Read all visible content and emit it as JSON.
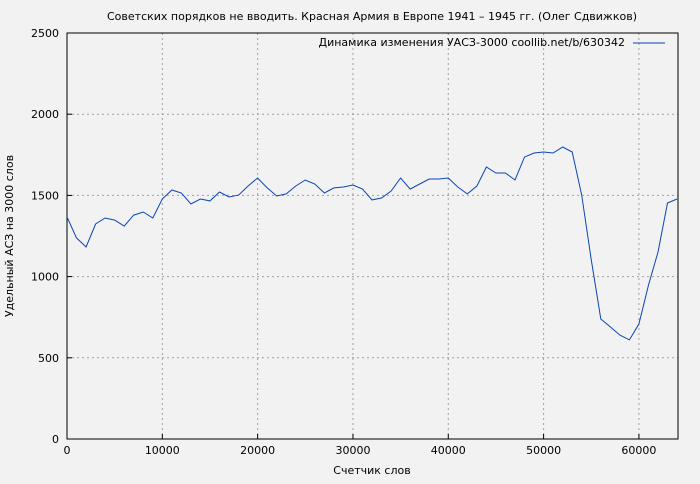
{
  "chart_data": {
    "type": "line",
    "title": "Советских порядков не вводить. Красная Армия в Европе 1941 – 1945 гг. (Олег Сдвижков)",
    "xlabel": "Счетчик слов",
    "ylabel": "Удельный АСЗ на 3000 слов",
    "xlim": [
      0,
      64100
    ],
    "ylim": [
      0,
      2500
    ],
    "xticks": [
      0,
      10000,
      20000,
      30000,
      40000,
      50000,
      60000
    ],
    "yticks": [
      0,
      500,
      1000,
      1500,
      2000,
      2500
    ],
    "grid": true,
    "legend_position": "top-right",
    "series": [
      {
        "name": "Динамика изменения УАСЗ-3000 coollib.net/b/630342",
        "color": "#0a46b4",
        "x": [
          0,
          1000,
          2000,
          3000,
          4000,
          5000,
          6000,
          7000,
          8000,
          9000,
          10000,
          11000,
          12000,
          13000,
          14000,
          15000,
          16000,
          17000,
          18000,
          19000,
          20000,
          21000,
          22000,
          23000,
          24000,
          25000,
          26000,
          27000,
          28000,
          29000,
          30000,
          31000,
          32000,
          33000,
          34000,
          35000,
          36000,
          37000,
          38000,
          39000,
          40000,
          41000,
          42000,
          43000,
          44000,
          45000,
          46000,
          47000,
          48000,
          49000,
          50000,
          51000,
          52000,
          53000,
          54000,
          55000,
          56000,
          57000,
          58000,
          59000,
          60000,
          61000,
          62000,
          63000,
          64000
        ],
        "y": [
          1367,
          1238,
          1182,
          1324,
          1361,
          1348,
          1311,
          1379,
          1398,
          1361,
          1478,
          1533,
          1515,
          1447,
          1478,
          1466,
          1521,
          1490,
          1502,
          1558,
          1607,
          1546,
          1496,
          1509,
          1558,
          1595,
          1570,
          1515,
          1546,
          1552,
          1564,
          1539,
          1472,
          1484,
          1527,
          1607,
          1539,
          1570,
          1601,
          1601,
          1607,
          1552,
          1509,
          1558,
          1675,
          1638,
          1638,
          1595,
          1736,
          1761,
          1767,
          1761,
          1798,
          1767,
          1502,
          1102,
          739,
          690,
          640,
          610,
          708,
          948,
          1151,
          1453,
          1478
        ]
      }
    ]
  }
}
